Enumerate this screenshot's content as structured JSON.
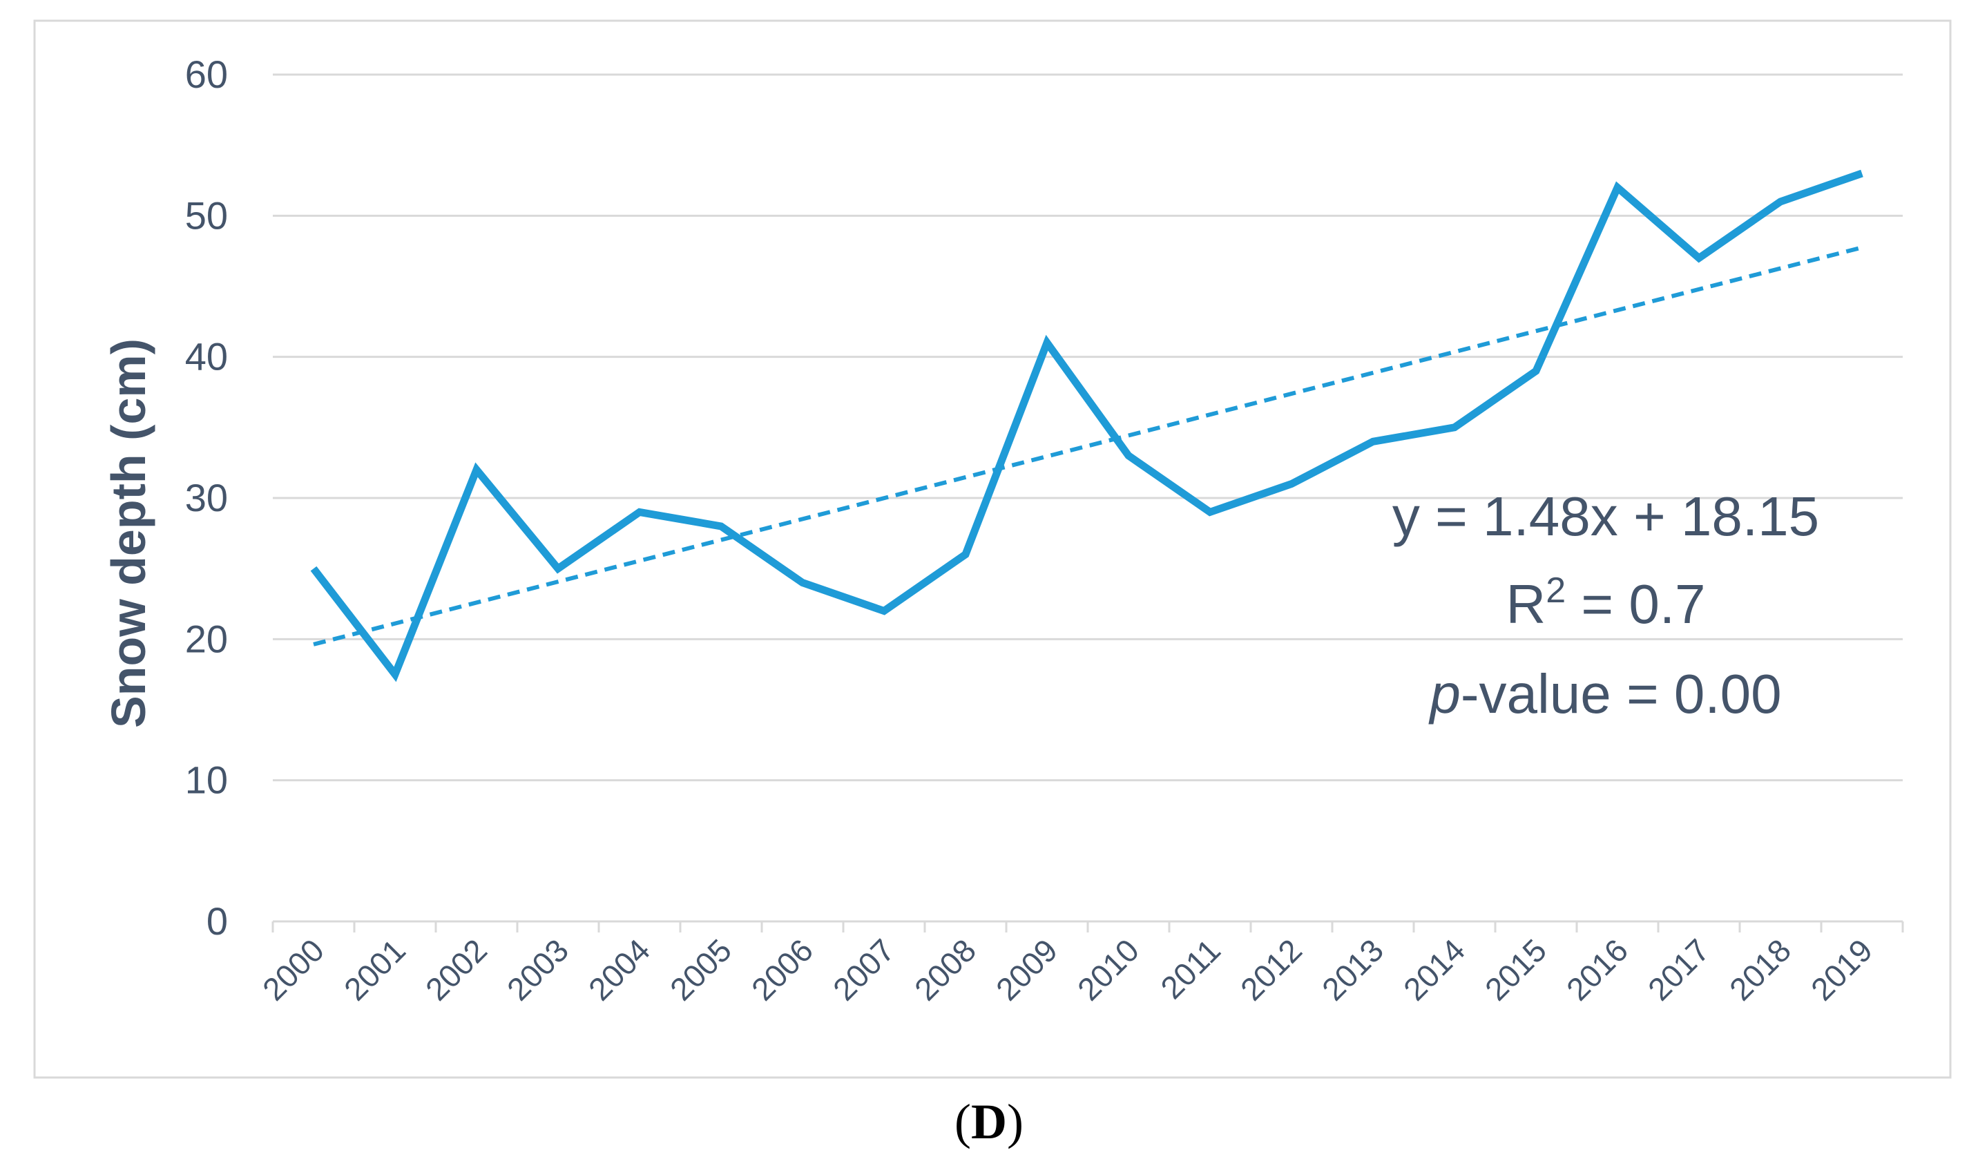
{
  "chart_data": {
    "type": "line",
    "title": "",
    "panel_label": "(D)",
    "panel_letter": "D",
    "xlabel": "",
    "ylabel": "Snow depth  (cm)",
    "ylim": [
      0,
      60
    ],
    "yticks": [
      0,
      10,
      20,
      30,
      40,
      50,
      60
    ],
    "grid": true,
    "categories": [
      "2000",
      "2001",
      "2002",
      "2003",
      "2004",
      "2005",
      "2006",
      "2007",
      "2008",
      "2009",
      "2010",
      "2011",
      "2012",
      "2013",
      "2014",
      "2015",
      "2016",
      "2017",
      "2018",
      "2019"
    ],
    "series": [
      {
        "name": "Snow depth",
        "values": [
          25,
          17.5,
          32,
          25,
          29,
          28,
          24,
          22,
          26,
          41,
          33,
          29,
          31,
          34,
          35,
          39,
          52,
          47,
          51,
          53
        ],
        "color": "#1f9bd7"
      }
    ],
    "trendline": {
      "slope": 1.48,
      "intercept": 18.15,
      "color": "#1f9bd7",
      "style": "dashed"
    },
    "annotations": {
      "equation": "y = 1.48x + 18.15",
      "r2_prefix": "R",
      "r2_sup": "2",
      "r2_suffix": " = 0.7",
      "p_italic": "p",
      "p_rest": "-value = 0.00"
    }
  }
}
